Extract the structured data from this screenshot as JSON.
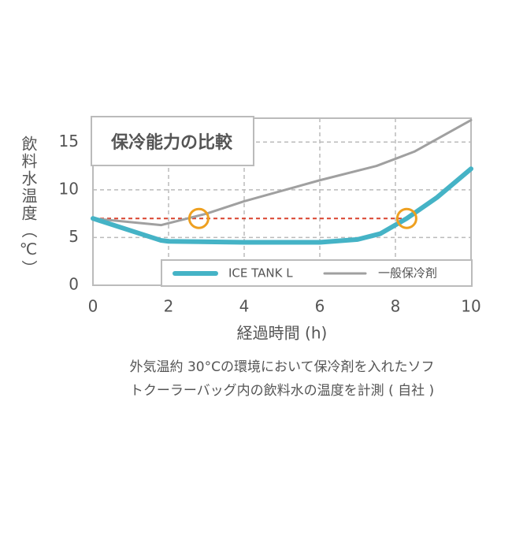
{
  "chart_data": {
    "type": "line",
    "title": "保冷能力の比較",
    "y_label": "飲料水温度（℃）",
    "x_label": "経過時間 (h)",
    "caption": [
      "外気温約 30°Cの環境において保冷剤を入れたソフ",
      "トクーラーバッグ内の飲料水の温度を計測 ( 自社 )"
    ],
    "xlim": [
      0,
      10
    ],
    "xticks": [
      0,
      2,
      4,
      6,
      8,
      10
    ],
    "ylim": [
      0,
      17.5
    ],
    "yticks": [
      0,
      5,
      10,
      15
    ],
    "grid": true,
    "series": [
      {
        "name": "ICE TANK L",
        "color": "#45b3c6",
        "width": 6,
        "x": [
          0,
          1.8,
          2,
          4,
          6,
          7,
          7.6,
          8.3,
          9.1,
          10
        ],
        "values": [
          7,
          4.7,
          4.6,
          4.5,
          4.5,
          4.8,
          5.4,
          7,
          9.2,
          12.2
        ]
      },
      {
        "name": "一般保冷剤",
        "color": "#a0a0a0",
        "width": 3,
        "x": [
          0,
          1.8,
          3,
          4,
          6,
          7.5,
          8.5,
          10
        ],
        "values": [
          7,
          6.3,
          7.5,
          8.8,
          11,
          12.5,
          14,
          17.3
        ]
      }
    ],
    "threshold": {
      "value": 7,
      "x_end": 8.3,
      "color": "#d9432f"
    },
    "markers": {
      "color": "#eea020",
      "x": [
        2.8,
        8.3
      ],
      "values": [
        7,
        7
      ]
    }
  }
}
